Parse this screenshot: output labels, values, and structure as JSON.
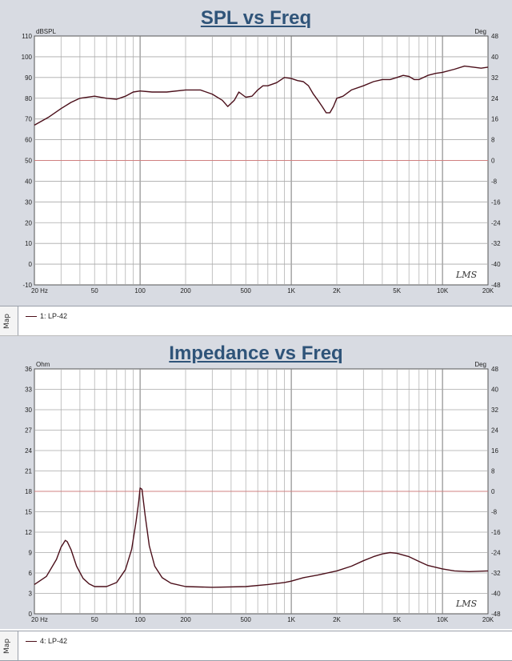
{
  "chart_data": [
    {
      "type": "line",
      "title": "SPL vs Freq",
      "xscale": "log",
      "xlim": [
        20,
        20000
      ],
      "x_tick_labels": [
        "20 Hz",
        "50",
        "100",
        "200",
        "500",
        "1K",
        "2K",
        "5K",
        "10K",
        "20K"
      ],
      "x_tick_values": [
        20,
        50,
        100,
        200,
        500,
        1000,
        2000,
        5000,
        10000,
        20000
      ],
      "ylabel_left": "dBSPL",
      "ylim_left": [
        -10,
        110
      ],
      "y_ticks_left": [
        "110",
        "100",
        "90",
        "80",
        "70",
        "60",
        "50",
        "40",
        "30",
        "20",
        "10",
        "0",
        "-10"
      ],
      "ylabel_right": "Deg",
      "y_ticks_right": [
        "48",
        "40",
        "32",
        "24",
        "16",
        "8",
        "0",
        "-8",
        "-16",
        "-24",
        "-32",
        "-40",
        "-48"
      ],
      "grid": true,
      "watermark": "LMS",
      "series": [
        {
          "name": "1: LP-42",
          "x": [
            20,
            25,
            30,
            35,
            40,
            50,
            60,
            70,
            80,
            90,
            100,
            120,
            150,
            200,
            250,
            300,
            350,
            380,
            420,
            450,
            500,
            550,
            600,
            650,
            700,
            800,
            900,
            1000,
            1100,
            1200,
            1300,
            1400,
            1500,
            1600,
            1700,
            1800,
            1900,
            2000,
            2200,
            2500,
            3000,
            3500,
            4000,
            4500,
            5000,
            5500,
            6000,
            6500,
            7000,
            8000,
            9000,
            10000,
            12000,
            14000,
            16000,
            18000,
            20000
          ],
          "values": [
            67,
            71,
            75,
            78,
            80,
            81,
            80,
            79.5,
            81,
            83,
            83.5,
            83,
            83,
            84,
            84,
            82,
            79,
            76,
            79,
            83,
            80.5,
            81,
            84,
            86,
            86,
            87.5,
            90,
            89.5,
            88.5,
            88,
            86,
            82,
            79,
            76,
            73,
            73,
            76,
            80,
            81,
            84,
            86,
            88,
            89,
            89,
            90,
            91,
            90.5,
            89,
            89,
            91,
            92,
            92.5,
            94,
            95.5,
            95,
            94.5,
            95
          ]
        }
      ]
    },
    {
      "type": "line",
      "title": "Impedance vs Freq",
      "xscale": "log",
      "xlim": [
        20,
        20000
      ],
      "x_tick_labels": [
        "20 Hz",
        "50",
        "100",
        "200",
        "500",
        "1K",
        "2K",
        "5K",
        "10K",
        "20K"
      ],
      "x_tick_values": [
        20,
        50,
        100,
        200,
        500,
        1000,
        2000,
        5000,
        10000,
        20000
      ],
      "ylabel_left": "Ohm",
      "ylim_left": [
        0,
        36
      ],
      "y_ticks_left": [
        "36",
        "33",
        "30",
        "27",
        "24",
        "21",
        "18",
        "15",
        "12",
        "9",
        "6",
        "3",
        "0"
      ],
      "ylabel_right": "Deg",
      "y_ticks_right": [
        "48",
        "40",
        "32",
        "24",
        "16",
        "8",
        "0",
        "-8",
        "-16",
        "-24",
        "-32",
        "-40",
        "-48"
      ],
      "grid": true,
      "watermark": "LMS",
      "series": [
        {
          "name": "4: LP-42",
          "x": [
            20,
            24,
            28,
            30,
            32,
            33,
            35,
            38,
            42,
            46,
            50,
            60,
            70,
            80,
            88,
            94,
            98,
            100,
            103,
            108,
            115,
            125,
            140,
            160,
            200,
            300,
            500,
            700,
            900,
            1000,
            1200,
            1500,
            2000,
            2500,
            3000,
            3500,
            4000,
            4500,
            5000,
            6000,
            7000,
            8000,
            10000,
            12000,
            15000,
            20000
          ],
          "values": [
            4.3,
            5.5,
            8.0,
            9.8,
            10.8,
            10.6,
            9.4,
            7.0,
            5.2,
            4.4,
            4.0,
            4.0,
            4.6,
            6.5,
            9.5,
            13.5,
            16.5,
            18.5,
            18.3,
            14.5,
            10.0,
            7.0,
            5.3,
            4.5,
            4.0,
            3.9,
            4.0,
            4.3,
            4.6,
            4.8,
            5.3,
            5.7,
            6.3,
            7.0,
            7.8,
            8.4,
            8.8,
            9.0,
            8.9,
            8.4,
            7.7,
            7.1,
            6.6,
            6.3,
            6.2,
            6.3
          ]
        }
      ]
    }
  ],
  "colors": {
    "curve": "#4b0f1a",
    "grid": "#a9a9a9",
    "red_line": "#d08080",
    "axis_text": "#222222",
    "title": "#2f5479"
  },
  "legends": {
    "map_label": "Map"
  }
}
